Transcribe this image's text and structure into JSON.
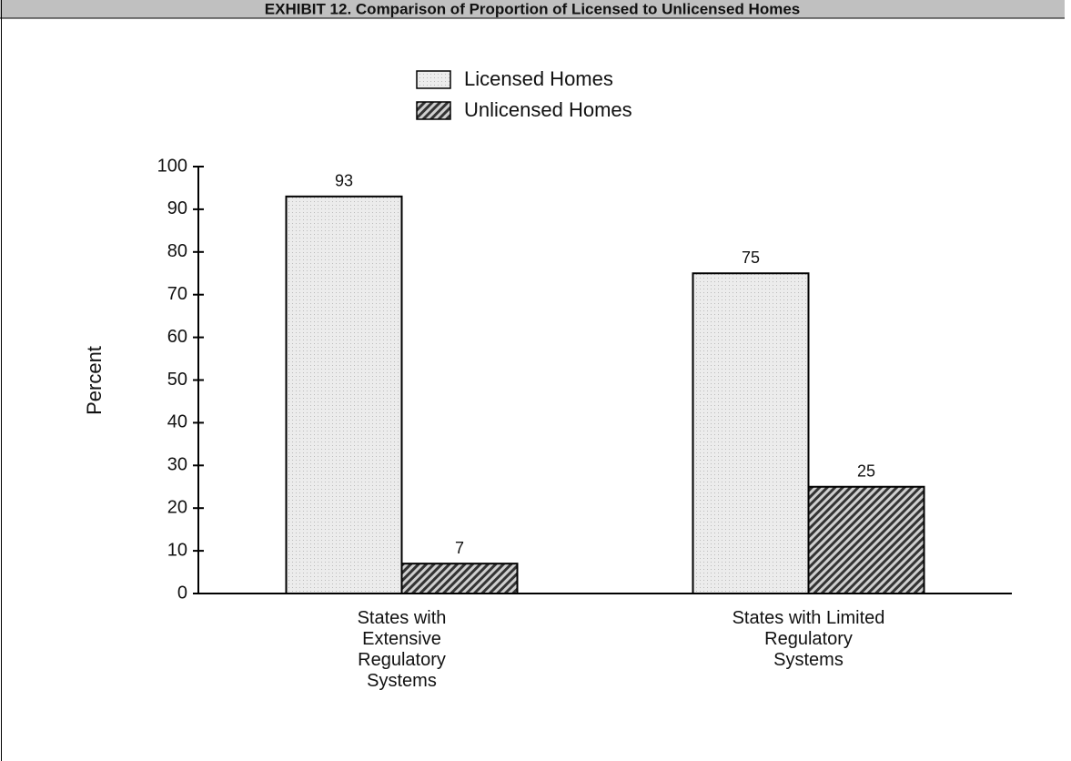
{
  "chart_data": {
    "type": "bar",
    "title": "EXHIBIT 12. Comparison of Proportion of Licensed to Unlicensed Homes",
    "ylabel": "Percent",
    "categories": [
      "States with Extensive Regulatory Systems",
      "States with Limited Regulatory Systems"
    ],
    "series": [
      {
        "name": "Licensed Homes",
        "color": "#e4e4e4",
        "pattern": "dots",
        "values": [
          93,
          75
        ]
      },
      {
        "name": "Unlicensed Homes",
        "color": "#555555",
        "pattern": "hatch",
        "values": [
          7,
          25
        ]
      }
    ],
    "ylim": [
      0,
      100
    ],
    "yticks": [
      0,
      10,
      20,
      30,
      40,
      50,
      60,
      70,
      80,
      90,
      100
    ]
  }
}
